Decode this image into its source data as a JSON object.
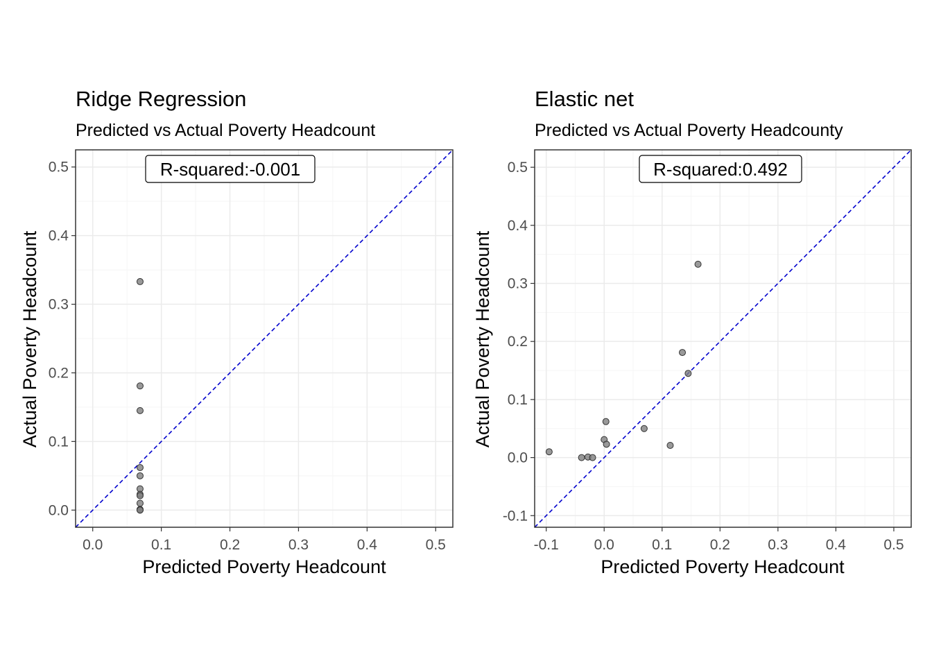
{
  "chart_data": [
    {
      "type": "scatter",
      "title": "Ridge Regression",
      "subtitle": "Predicted vs Actual Poverty Headcount",
      "xlabel": "Predicted Poverty Headcount",
      "ylabel": "Actual Poverty Headcount",
      "annotation": "R-squared:-0.001",
      "xlim": [
        -0.025,
        0.525
      ],
      "ylim": [
        -0.025,
        0.525
      ],
      "xticks": [
        0.0,
        0.1,
        0.2,
        0.3,
        0.4,
        0.5
      ],
      "xtick_labels": [
        "0.0",
        "0.1",
        "0.2",
        "0.3",
        "0.4",
        "0.5"
      ],
      "yticks": [
        0.0,
        0.1,
        0.2,
        0.3,
        0.4,
        0.5
      ],
      "ytick_labels": [
        "0.0",
        "0.1",
        "0.2",
        "0.3",
        "0.4",
        "0.5"
      ],
      "grid": true,
      "reference_line": "y = x, dashed",
      "points": [
        {
          "x": 0.069,
          "y": 0.333
        },
        {
          "x": 0.069,
          "y": 0.181
        },
        {
          "x": 0.069,
          "y": 0.145
        },
        {
          "x": 0.069,
          "y": 0.062
        },
        {
          "x": 0.069,
          "y": 0.05
        },
        {
          "x": 0.069,
          "y": 0.031
        },
        {
          "x": 0.069,
          "y": 0.023
        },
        {
          "x": 0.069,
          "y": 0.021
        },
        {
          "x": 0.069,
          "y": 0.01
        },
        {
          "x": 0.069,
          "y": 0.001
        },
        {
          "x": 0.069,
          "y": 0.0
        },
        {
          "x": 0.069,
          "y": 0.0
        }
      ]
    },
    {
      "type": "scatter",
      "title": "Elastic net",
      "subtitle": "Predicted vs Actual Poverty Headcounty",
      "xlabel": "Predicted Poverty Headcount",
      "ylabel": "Actual Poverty Headcount",
      "annotation": "R-squared:0.492",
      "xlim": [
        -0.12,
        0.53
      ],
      "ylim": [
        -0.12,
        0.53
      ],
      "xticks": [
        -0.1,
        0.0,
        0.1,
        0.2,
        0.3,
        0.4,
        0.5
      ],
      "xtick_labels": [
        "-0.1",
        "0.0",
        "0.1",
        "0.2",
        "0.3",
        "0.4",
        "0.5"
      ],
      "yticks": [
        -0.1,
        0.0,
        0.1,
        0.2,
        0.3,
        0.4,
        0.5
      ],
      "ytick_labels": [
        "-0.1",
        "0.0",
        "0.1",
        "0.2",
        "0.3",
        "0.4",
        "0.5"
      ],
      "grid": true,
      "reference_line": "y = x, dashed",
      "points": [
        {
          "x": -0.095,
          "y": 0.01
        },
        {
          "x": -0.039,
          "y": 0.0
        },
        {
          "x": -0.028,
          "y": 0.001
        },
        {
          "x": -0.02,
          "y": 0.0
        },
        {
          "x": 0.0,
          "y": 0.031
        },
        {
          "x": 0.003,
          "y": 0.062
        },
        {
          "x": 0.004,
          "y": 0.023
        },
        {
          "x": 0.069,
          "y": 0.05
        },
        {
          "x": 0.114,
          "y": 0.021
        },
        {
          "x": 0.135,
          "y": 0.181
        },
        {
          "x": 0.145,
          "y": 0.145
        },
        {
          "x": 0.162,
          "y": 0.333
        }
      ]
    }
  ],
  "colors": {
    "point_fill": "#808080",
    "point_stroke": "#333333",
    "reference_line": "#0000cd",
    "grid_major": "#ebebeb",
    "grid_minor": "#f5f5f5",
    "panel_border": "#333333",
    "tick_text": "#4d4d4d"
  }
}
